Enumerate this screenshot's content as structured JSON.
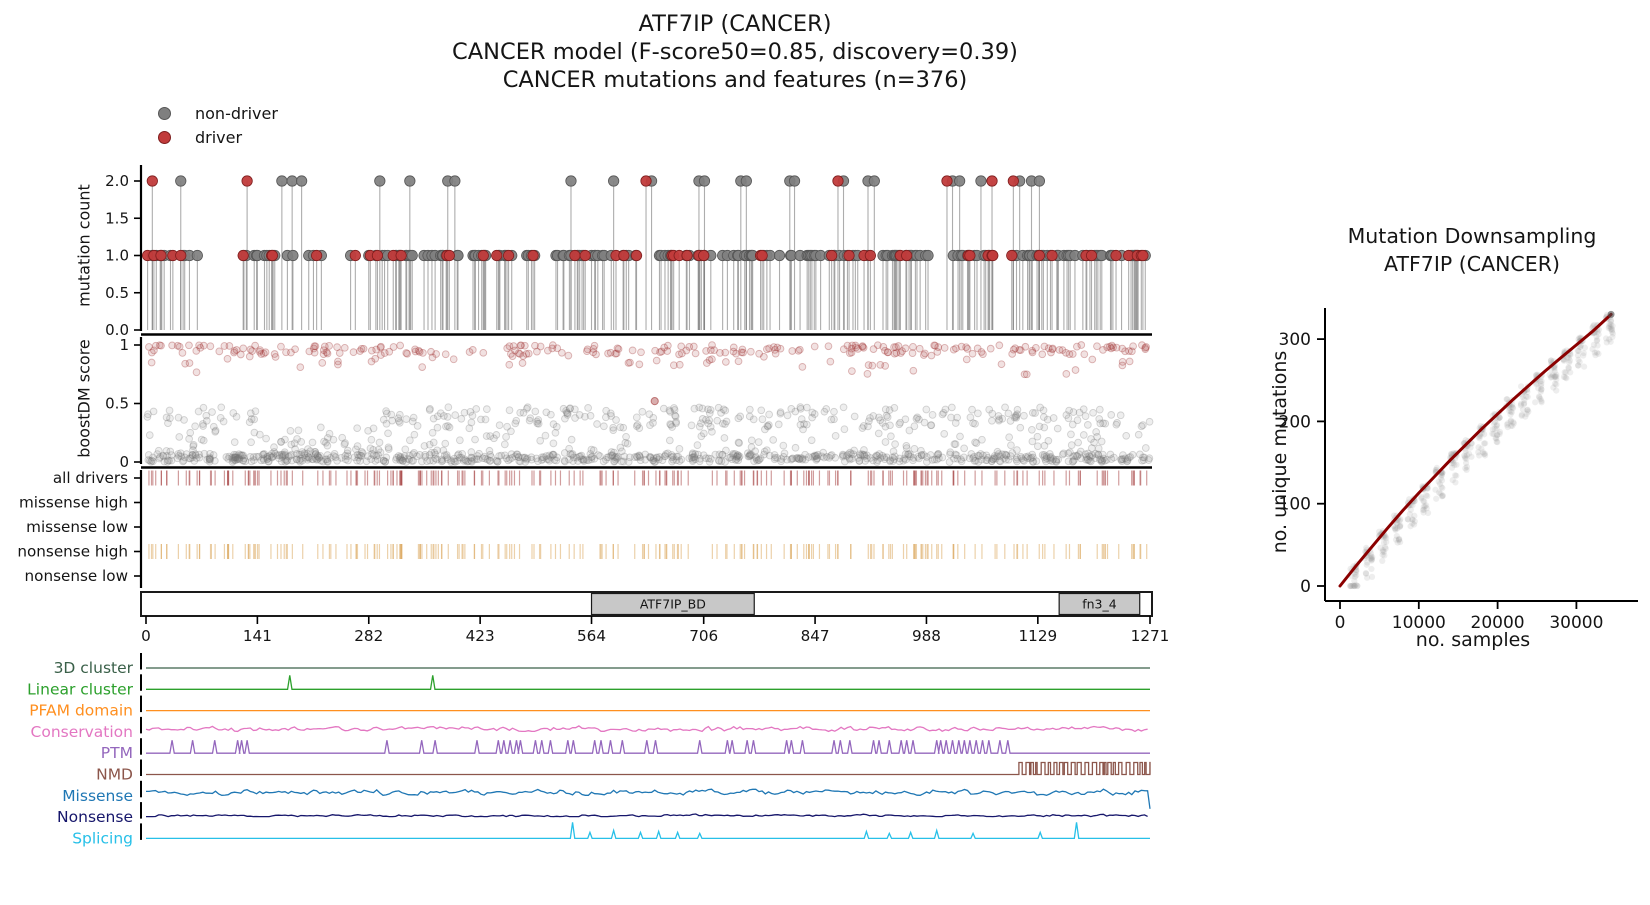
{
  "title": {
    "line1": "ATF7IP (CANCER)",
    "line2": "CANCER model (F-score50=0.85, discovery=0.39)",
    "line3": "CANCER mutations and features (n=376)"
  },
  "legend": {
    "items": [
      {
        "label": "non-driver",
        "color": "#7f7f7f",
        "edge": "#565656"
      },
      {
        "label": "driver",
        "color": "#c13b3b",
        "edge": "#7e1e1e"
      }
    ]
  },
  "chart_data": [
    {
      "id": "needle",
      "type": "scatter",
      "ylabel": "mutation count",
      "yticks": [
        0.0,
        0.5,
        1.0,
        1.5,
        2.0
      ],
      "ylim": [
        0,
        2.15
      ],
      "xlim": [
        0,
        1271
      ],
      "n_mutations": 376,
      "colors": {
        "non_driver": "#7f7f7f",
        "driver": "#c13b3b",
        "stem": "rgba(105,105,105,0.55)"
      },
      "count2": [
        {
          "pos": 8,
          "driver": true
        },
        {
          "pos": 44,
          "driver": false
        },
        {
          "pos": 128,
          "driver": true
        },
        {
          "pos": 172,
          "driver": false
        },
        {
          "pos": 185,
          "driver": false
        },
        {
          "pos": 197,
          "driver": false
        },
        {
          "pos": 296,
          "driver": false
        },
        {
          "pos": 334,
          "driver": false
        },
        {
          "pos": 382,
          "driver": false
        },
        {
          "pos": 391,
          "driver": false
        },
        {
          "pos": 538,
          "driver": false
        },
        {
          "pos": 592,
          "driver": false
        },
        {
          "pos": 633,
          "driver": true
        },
        {
          "pos": 640,
          "driver": false
        },
        {
          "pos": 700,
          "driver": false
        },
        {
          "pos": 707,
          "driver": false
        },
        {
          "pos": 753,
          "driver": false
        },
        {
          "pos": 760,
          "driver": false
        },
        {
          "pos": 815,
          "driver": false
        },
        {
          "pos": 821,
          "driver": false
        },
        {
          "pos": 876,
          "driver": true
        },
        {
          "pos": 883,
          "driver": false
        },
        {
          "pos": 914,
          "driver": false
        },
        {
          "pos": 922,
          "driver": false
        },
        {
          "pos": 1014,
          "driver": true
        },
        {
          "pos": 1021,
          "driver": false
        },
        {
          "pos": 1030,
          "driver": false
        },
        {
          "pos": 1057,
          "driver": false
        },
        {
          "pos": 1071,
          "driver": true
        },
        {
          "pos": 1098,
          "driver": true
        },
        {
          "pos": 1106,
          "driver": false
        },
        {
          "pos": 1121,
          "driver": false
        },
        {
          "pos": 1131,
          "driver": false
        }
      ],
      "count1_gen": {
        "seed": 7,
        "density": 0.26,
        "driver_fraction": 0.16,
        "gaps": [
          [
            78,
            122
          ],
          [
            235,
            258
          ],
          [
            622,
            648
          ],
          [
            995,
            1015
          ],
          [
            1074,
            1093
          ]
        ]
      }
    },
    {
      "id": "boostdm",
      "type": "scatter",
      "ylabel": "boostDM score",
      "yticks": [
        0,
        0.5,
        1
      ],
      "ylim": [
        0,
        1.05
      ],
      "xlim": [
        0,
        1271
      ],
      "n_gray": 1150,
      "n_red": 290,
      "seed": 11,
      "bands": {
        "gray_bottom": {
          "y": [
            0,
            0.07
          ],
          "weight": 0.58
        },
        "gray_mid": {
          "y": [
            0.3,
            0.47
          ],
          "weight": 0.27,
          "x_regions": [
            [
              0,
              140
            ],
            [
              300,
              1271
            ]
          ]
        },
        "gray_sparse": {
          "y": [
            0.07,
            0.3
          ],
          "weight": 0.15
        },
        "red_top": {
          "y": [
            0.92,
            1.0
          ],
          "weight": 0.8
        },
        "red_below": {
          "y": [
            0.72,
            0.92
          ],
          "weight": 0.2
        }
      },
      "outlier_red": [
        644,
        0.52
      ],
      "colors": {
        "gray": "#777777",
        "red": "#a03434"
      }
    },
    {
      "id": "rug",
      "type": "rug-tracks",
      "xlim": [
        0,
        1271
      ],
      "rows": [
        {
          "label": "all drivers",
          "color": "#a43b3b",
          "has_ticks": true
        },
        {
          "label": "missense high",
          "color": "#a43b3b",
          "has_ticks": false
        },
        {
          "label": "missense low",
          "color": "#a43b3b",
          "has_ticks": false
        },
        {
          "label": "nonsense high",
          "color": "#d9a355",
          "has_ticks": true
        },
        {
          "label": "nonsense low",
          "color": "#d9a355",
          "has_ticks": false
        }
      ],
      "tick_gen": {
        "seed": 5,
        "n": 235,
        "xlim": [
          2,
          1269
        ]
      }
    },
    {
      "id": "domains",
      "type": "domain-bar",
      "xlim": [
        0,
        1271
      ],
      "xticks": [
        0,
        141,
        282,
        423,
        564,
        706,
        847,
        988,
        1129,
        1271
      ],
      "domains": [
        {
          "name": "ATF7IP_BD",
          "start": 564,
          "end": 770
        },
        {
          "name": "fn3_4",
          "start": 1156,
          "end": 1258
        }
      ],
      "colors": {
        "fill": "#c8c8c8",
        "bar": "#ffffff",
        "border": "#1a1a1a"
      }
    },
    {
      "id": "features",
      "type": "line-tracks",
      "xlim": [
        0,
        1271
      ],
      "rows": [
        {
          "label": "3D cluster",
          "color": "#3a6049",
          "kind": "flat"
        },
        {
          "label": "Linear cluster",
          "color": "#2ca02c",
          "kind": "spikes",
          "spikes": [
            {
              "x": 182,
              "h": 14
            },
            {
              "x": 363,
              "h": 14
            }
          ]
        },
        {
          "label": "PFAM domain",
          "color": "#ff8f1f",
          "kind": "flat"
        },
        {
          "label": "Conservation",
          "color": "#e377c2",
          "kind": "noise",
          "amp": 5,
          "seed": 21
        },
        {
          "label": "PTM",
          "color": "#9467bd",
          "kind": "spikes",
          "h_default": 13,
          "spikes": [
            33,
            59,
            87,
            116,
            121,
            128,
            305,
            349,
            366,
            419,
            446,
            453,
            461,
            469,
            474,
            493,
            501,
            512,
            534,
            541,
            568,
            576,
            588,
            603,
            634,
            645,
            701,
            736,
            742,
            761,
            769,
            811,
            817,
            831,
            871,
            879,
            891,
            921,
            928,
            941,
            956,
            963,
            971,
            1001,
            1006,
            1013,
            1021,
            1029,
            1036,
            1043,
            1051,
            1059,
            1067,
            1081,
            1091
          ]
        },
        {
          "label": "NMD",
          "color": "#8c564b",
          "kind": "square",
          "active": [
            1105,
            1271
          ],
          "h": 12,
          "seed": 31
        },
        {
          "label": "Missense",
          "color": "#1f77b4",
          "kind": "noise",
          "amp": 5.5,
          "seed": 41,
          "end_dip": true
        },
        {
          "label": "Nonsense",
          "color": "#16166b",
          "kind": "noise",
          "amp": 2.4,
          "seed": 51
        },
        {
          "label": "Splicing",
          "color": "#27c0e8",
          "kind": "spikes",
          "spikes": [
            {
              "x": 540,
              "h": 16
            },
            {
              "x": 562,
              "h": 6
            },
            {
              "x": 592,
              "h": 8
            },
            {
              "x": 626,
              "h": 6
            },
            {
              "x": 649,
              "h": 7
            },
            {
              "x": 673,
              "h": 6
            },
            {
              "x": 701,
              "h": 5
            },
            {
              "x": 912,
              "h": 7
            },
            {
              "x": 941,
              "h": 5
            },
            {
              "x": 968,
              "h": 6
            },
            {
              "x": 1001,
              "h": 8
            },
            {
              "x": 1047,
              "h": 5
            },
            {
              "x": 1132,
              "h": 6
            },
            {
              "x": 1178,
              "h": 16
            }
          ]
        }
      ]
    },
    {
      "id": "downsampling",
      "type": "scatter",
      "title_line1": "Mutation Downsampling",
      "title_line2": "ATF7IP (CANCER)",
      "xlabel": "no. samples",
      "ylabel": "no. unique mutations",
      "xticks": [
        0,
        10000,
        20000,
        30000
      ],
      "yticks": [
        0,
        100,
        200,
        300
      ],
      "xlim": [
        0,
        36500
      ],
      "ylim": [
        0,
        345
      ],
      "curve_x": [
        0,
        2000,
        4000,
        6000,
        8000,
        10000,
        12000,
        14000,
        16000,
        18000,
        20000,
        22000,
        24000,
        26000,
        28000,
        30000,
        32000,
        34400
      ],
      "curve_y": [
        0,
        24,
        47,
        70,
        92,
        113,
        133,
        153,
        172,
        191,
        209,
        227,
        244,
        261,
        277,
        293,
        309,
        330
      ],
      "clusters": {
        "seed": 61,
        "x_start": 1800,
        "x_step": 1800,
        "n_clusters": 19,
        "points_per": 26,
        "below_spread": 34,
        "above_spread": 5
      },
      "colors": {
        "curve": "#8b0000",
        "points": "#8f8f8f"
      }
    }
  ]
}
